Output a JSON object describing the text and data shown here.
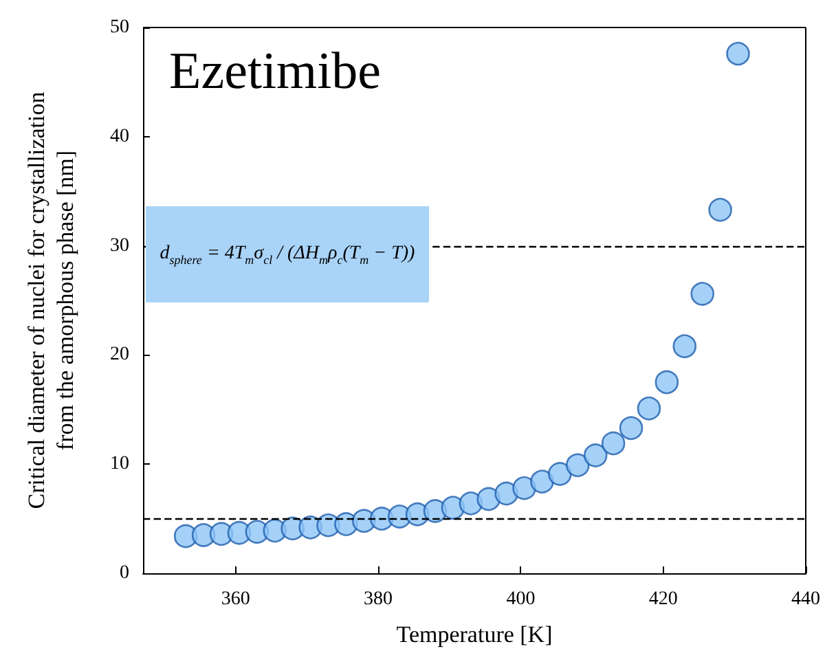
{
  "chart_data": {
    "type": "scatter",
    "title": "Ezetimibe",
    "xlabel": "Temperature [K]",
    "ylabel": "Critical diameter of nuclei for crystallization\nfrom the amorphous phase [nm]",
    "annotations": [
      "d$_{sphere}$ = 4T$_{m}$σ$_{cl}$ / (ΔH$_{m}$ρ$_{c}$(T$_{m}$ − T))"
    ],
    "x": [
      353,
      355.5,
      358,
      360.5,
      363,
      365.5,
      368,
      370.5,
      373,
      375.5,
      378,
      380.5,
      383,
      385.5,
      388,
      390.5,
      393,
      395.5,
      398,
      400.5,
      403,
      405.5,
      408,
      410.5,
      413,
      415.5,
      418,
      420.5,
      423,
      425.5,
      428,
      430.5
    ],
    "series": [
      {
        "color": "#8ec5f7",
        "values": [
          3.4,
          3.5,
          3.6,
          3.7,
          3.8,
          3.9,
          4.1,
          4.2,
          4.4,
          4.5,
          4.8,
          5.0,
          5.2,
          5.4,
          5.7,
          6.0,
          6.4,
          6.8,
          7.3,
          7.8,
          8.4,
          9.1,
          9.9,
          10.8,
          11.9,
          13.3,
          15.1,
          17.5,
          20.8,
          25.6,
          33.3,
          47.6
        ]
      }
    ],
    "xlim": [
      347,
      440
    ],
    "xticks": [
      360,
      380,
      400,
      420,
      440
    ],
    "ylim": [
      0,
      50
    ],
    "yticks": [
      0,
      10,
      20,
      30,
      40,
      50
    ],
    "ref_lines": [
      {
        "axis": "y",
        "value": 30,
        "color": "#000000",
        "line_style": "dashed"
      },
      {
        "axis": "y",
        "value": 5,
        "color": "#000000",
        "line_style": "dashed"
      }
    ],
    "grid": false,
    "marker": "circle"
  }
}
